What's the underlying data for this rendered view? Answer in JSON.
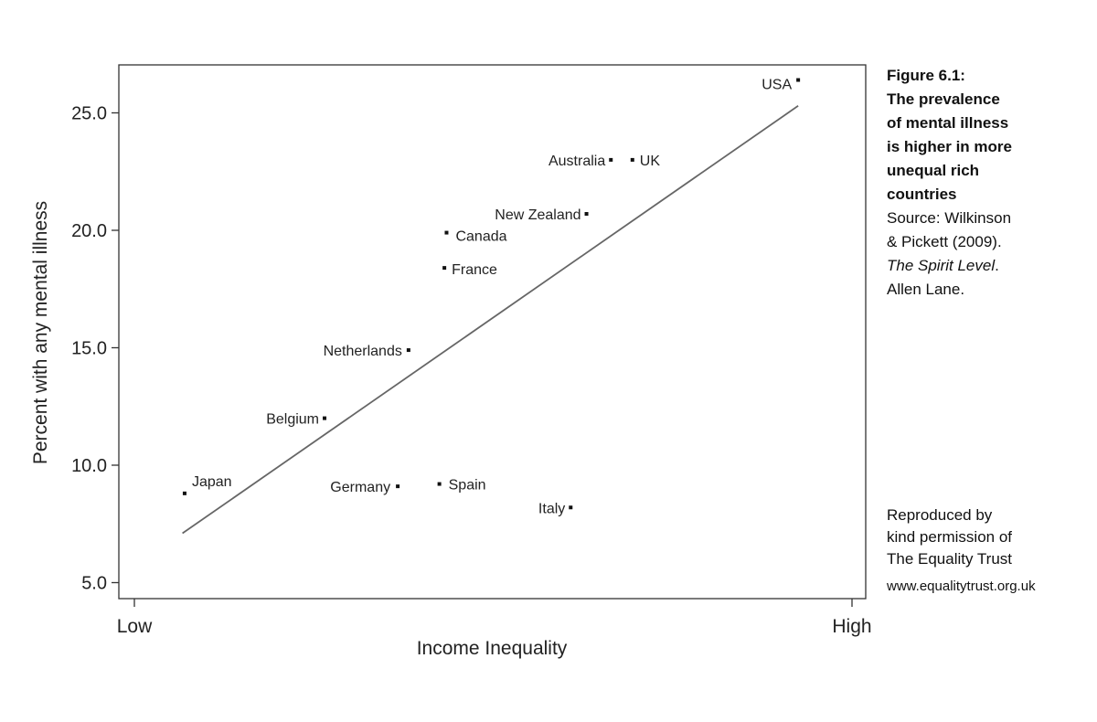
{
  "chart_data": {
    "type": "scatter",
    "xlabel": "Income Inequality",
    "ylabel": "Percent with any mental illness",
    "x_ticks": [
      "Low",
      "High"
    ],
    "y_ticks": [
      "5.0",
      "10.0",
      "15.0",
      "20.0",
      "25.0"
    ],
    "ylim": [
      4.5,
      27.0
    ],
    "grid": false,
    "points": [
      {
        "label": "Japan",
        "x": 0.07,
        "y": 8.8
      },
      {
        "label": "Germany",
        "x": 0.367,
        "y": 9.1
      },
      {
        "label": "Spain",
        "x": 0.425,
        "y": 9.2
      },
      {
        "label": "Italy",
        "x": 0.608,
        "y": 8.2
      },
      {
        "label": "Belgium",
        "x": 0.265,
        "y": 12.0
      },
      {
        "label": "Netherlands",
        "x": 0.382,
        "y": 14.9
      },
      {
        "label": "France",
        "x": 0.432,
        "y": 18.4
      },
      {
        "label": "Canada",
        "x": 0.435,
        "y": 19.9
      },
      {
        "label": "New Zealand",
        "x": 0.63,
        "y": 20.7
      },
      {
        "label": "Australia",
        "x": 0.664,
        "y": 23.0
      },
      {
        "label": "UK",
        "x": 0.694,
        "y": 23.0
      },
      {
        "label": "USA",
        "x": 0.925,
        "y": 26.4
      }
    ],
    "trendline": {
      "x": [
        0.067,
        0.925
      ],
      "y": [
        7.1,
        25.3
      ]
    }
  },
  "caption": {
    "title_lines": [
      "Figure 6.1:",
      "The prevalence",
      "of mental illness",
      "is higher in more",
      "unequal rich",
      "countries"
    ],
    "source_lines": [
      "Source: Wilkinson",
      "& Pickett (2009)."
    ],
    "book_title": "The Spirit Level",
    "book_suffix": ".",
    "publisher": "Allen Lane."
  },
  "credit": {
    "lines": [
      "Reproduced by",
      "kind permission of",
      "The Equality Trust"
    ],
    "url": "www.equalitytrust.org.uk"
  }
}
